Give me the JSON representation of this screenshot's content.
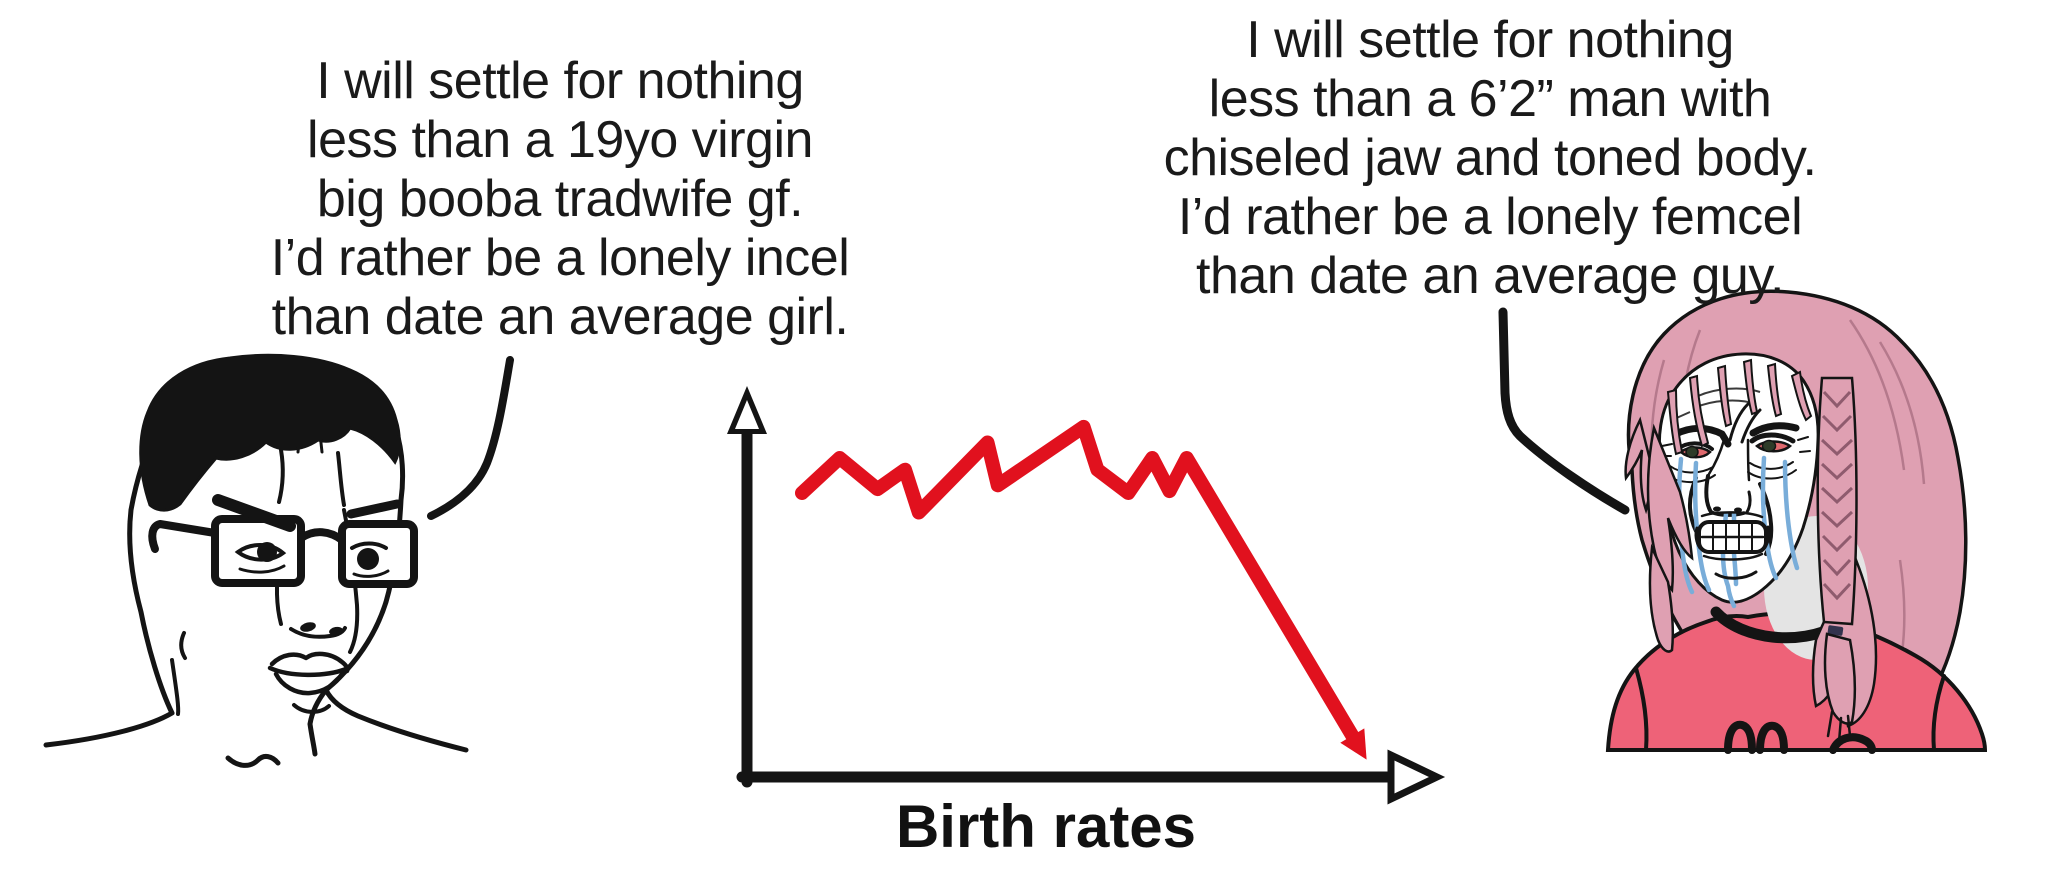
{
  "meme": {
    "left_speech": {
      "lines": [
        "I will settle for nothing",
        "less than a 19yo virgin",
        "big booba tradwife gf.",
        "I’d rather be a lonely incel",
        "than date an average girl."
      ]
    },
    "right_speech": {
      "lines": [
        "I will settle for nothing",
        "less than a 6’2” man with",
        "chiseled jaw and toned body.",
        "I’d rather be a lonely femcel",
        "than date an average guy."
      ]
    }
  },
  "illustrations": {
    "left_character": "angry-wojak-with-glasses",
    "right_character": "crying-pink-haired-wojak",
    "left_tail": "speech-tail",
    "right_tail": "speech-tail"
  },
  "colors": {
    "background": "#ffffff",
    "ink": "#141414",
    "trend_red": "#e1111e",
    "hair_pink": "#dfa0b2",
    "shirt_pink": "#ee6278",
    "tear_blue": "#79add9",
    "eye_red": "#e0696e",
    "shadow_gray": "#e4e4e4"
  },
  "chart_data": {
    "type": "line",
    "title": "",
    "xlabel": "Birth rates",
    "ylabel": "",
    "xlim": [
      0,
      100
    ],
    "ylim": [
      0,
      100
    ],
    "grid": false,
    "legend": false,
    "axis_style": "hand-drawn black axes with arrowheads, no ticks or tick labels",
    "series": [
      {
        "name": "birth rate trend",
        "color": "#e1111e",
        "ends_with_arrow": true,
        "points": [
          [
            8,
            73
          ],
          [
            13.5,
            82
          ],
          [
            19,
            74
          ],
          [
            23,
            79
          ],
          [
            25,
            68
          ],
          [
            35,
            86
          ],
          [
            36.5,
            75
          ],
          [
            49,
            90
          ],
          [
            51,
            79
          ],
          [
            55.5,
            73
          ],
          [
            59,
            82
          ],
          [
            61.5,
            73.5
          ],
          [
            64,
            82
          ],
          [
            89,
            8
          ]
        ]
      }
    ]
  }
}
